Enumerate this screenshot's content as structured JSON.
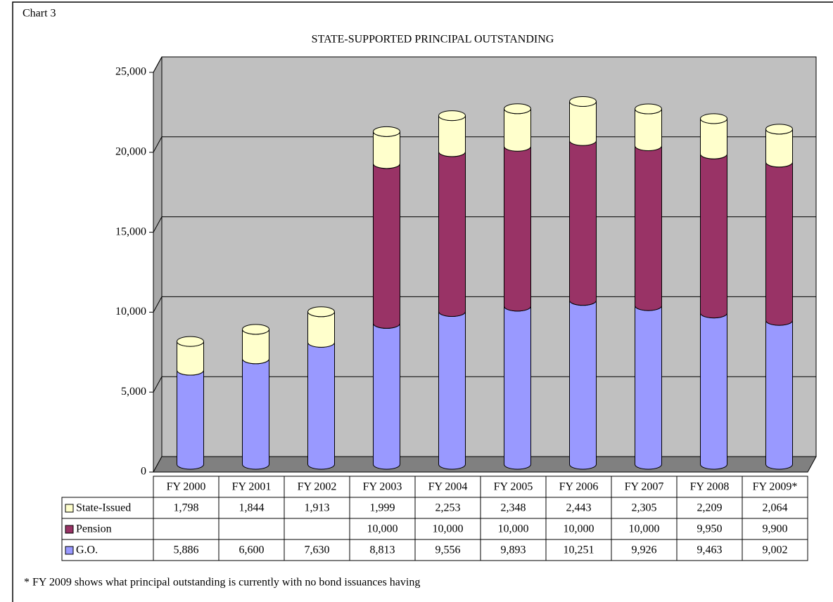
{
  "chart_data": {
    "type": "stacked_bar",
    "label": "Chart 3",
    "title": "STATE-SUPPORTED PRINCIPAL OUTSTANDING",
    "categories": [
      "FY 2000",
      "FY 2001",
      "FY 2002",
      "FY 2003",
      "FY 2004",
      "FY 2005",
      "FY 2006",
      "FY 2007",
      "FY 2008",
      "FY 2009*"
    ],
    "series": [
      {
        "name": "G.O.",
        "color": "#9999ff",
        "values": [
          5886,
          6600,
          7630,
          8813,
          9556,
          9893,
          10251,
          9926,
          9463,
          9002
        ],
        "value_labels": [
          "5,886",
          "6,600",
          "7,630",
          "8,813",
          "9,556",
          "9,893",
          "10,251",
          "9,926",
          "9,463",
          "9,002"
        ]
      },
      {
        "name": "Pension",
        "color": "#993366",
        "values": [
          null,
          null,
          null,
          10000,
          10000,
          10000,
          10000,
          10000,
          9950,
          9900
        ],
        "value_labels": [
          null,
          null,
          null,
          "10,000",
          "10,000",
          "10,000",
          "10,000",
          "10,000",
          "9,950",
          "9,900"
        ]
      },
      {
        "name": "State-Issued",
        "color": "#ffffcc",
        "values": [
          1798,
          1844,
          1913,
          1999,
          2253,
          2348,
          2443,
          2305,
          2209,
          2064
        ],
        "value_labels": [
          "1,798",
          "1,844",
          "1,913",
          "1,999",
          "2,253",
          "2,348",
          "2,443",
          "2,305",
          "2,209",
          "2,064"
        ]
      }
    ],
    "ylim": [
      0,
      25000
    ],
    "yticks": [
      0,
      {
        "value": 5000,
        "label": "5,000"
      },
      {
        "value": 10000,
        "label": "10,000"
      },
      {
        "value": 15000,
        "label": "15,000"
      },
      {
        "value": 20000,
        "label": "20,000"
      },
      {
        "value": 25000,
        "label": "25,000"
      }
    ],
    "grid": true,
    "footnote": "* FY 2009 shows what principal outstanding is currently with no bond issuances having"
  }
}
